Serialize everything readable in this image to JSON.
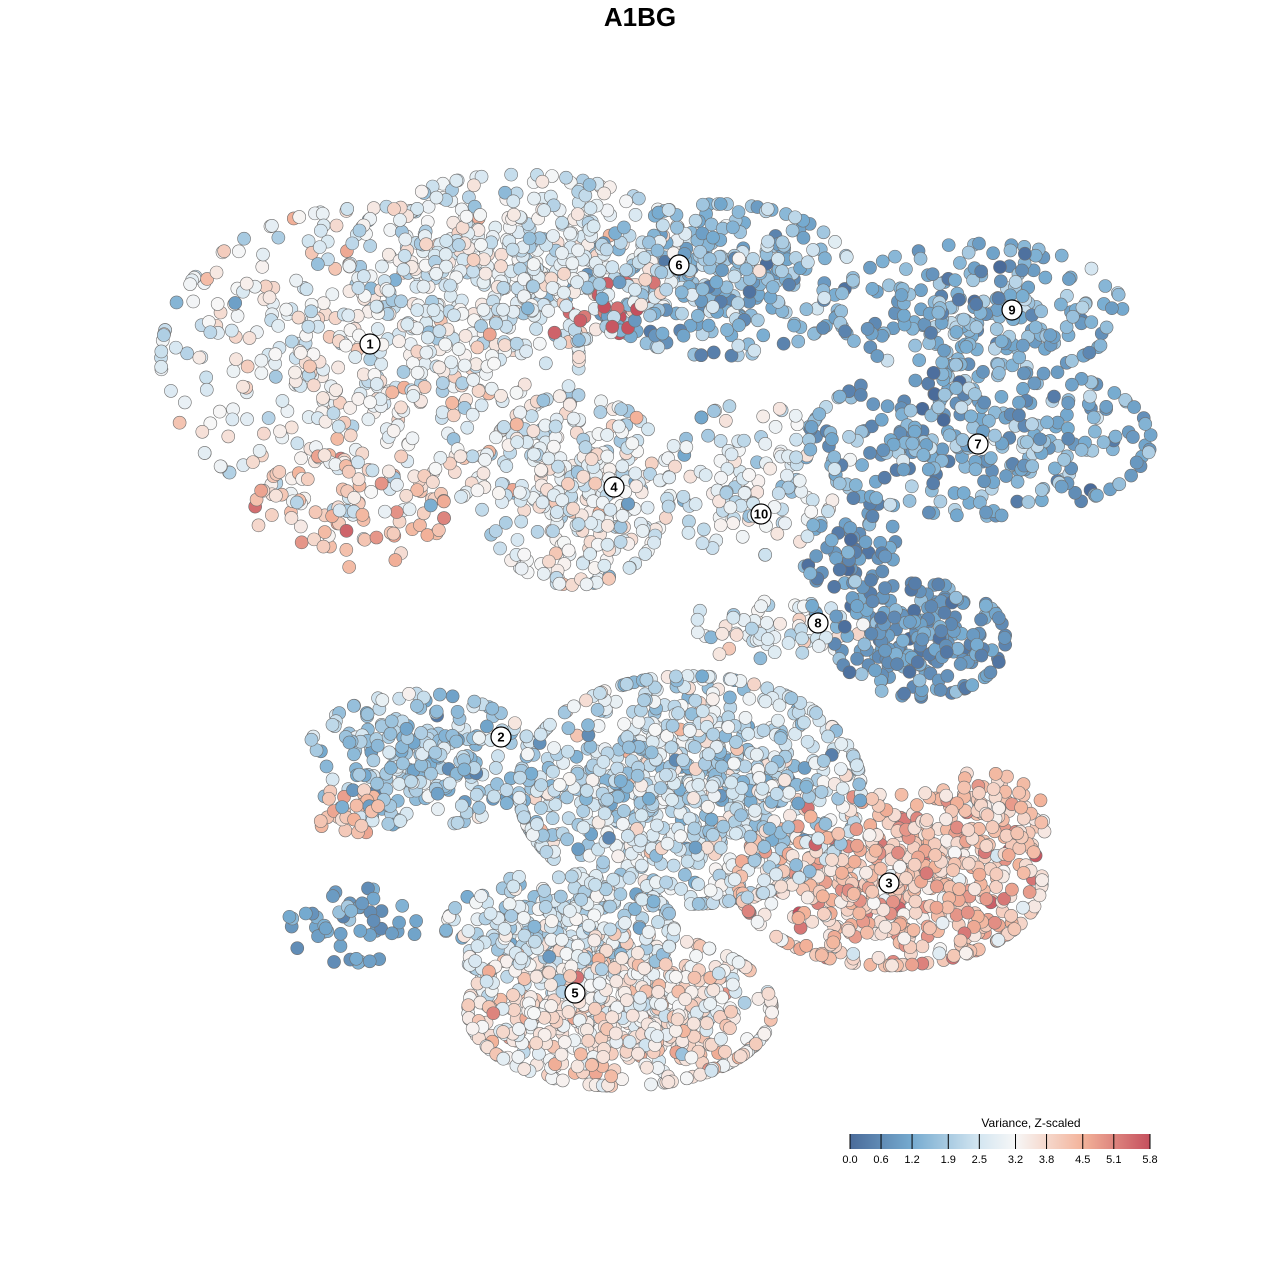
{
  "chart_data": {
    "type": "scatter",
    "title": "A1BG",
    "xlabel": "",
    "ylabel": "",
    "xlim": [
      -45,
      50
    ],
    "ylim": [
      -46,
      46
    ],
    "grid": false,
    "color_scale": {
      "title": "Variance, Z-scaled",
      "range": [
        0.0,
        5.8
      ],
      "ticks": [
        "0.0",
        "0.6",
        "1.2",
        "1.9",
        "2.5",
        "3.2",
        "3.8",
        "4.5",
        "5.1",
        "5.8"
      ],
      "stops": [
        {
          "value": 0.0,
          "color": "#4a6b9a"
        },
        {
          "value": 1.2,
          "color": "#76abd0"
        },
        {
          "value": 2.5,
          "color": "#d4e6f1"
        },
        {
          "value": 3.2,
          "color": "#f7f7f7"
        },
        {
          "value": 4.5,
          "color": "#f3b39a"
        },
        {
          "value": 5.8,
          "color": "#c5505e"
        }
      ],
      "placement": "bottom-right"
    },
    "cluster_labels": [
      {
        "label": "1",
        "x": -27,
        "y": 29.6
      },
      {
        "label": "2",
        "x": -13.9,
        "y": -9.7
      },
      {
        "label": "3",
        "x": 24.9,
        "y": -24.3
      },
      {
        "label": "4",
        "x": -2.6,
        "y": 15.3
      },
      {
        "label": "5",
        "x": -6.5,
        "y": -35.3
      },
      {
        "label": "6",
        "x": 3.9,
        "y": 37.5
      },
      {
        "label": "7",
        "x": 33.8,
        "y": 19.6
      },
      {
        "label": "8",
        "x": 17.8,
        "y": 1.7
      },
      {
        "label": "9",
        "x": 37.2,
        "y": 33
      },
      {
        "label": "10",
        "x": 12.1,
        "y": 12.6
      }
    ],
    "point_groups": [
      {
        "cx": -27,
        "cy": 28,
        "sx": 11,
        "sy": 8,
        "n": 500,
        "mean": 3.0,
        "sd": 0.6
      },
      {
        "cx": -12,
        "cy": 38,
        "sx": 9,
        "sy": 4.5,
        "n": 450,
        "mean": 2.7,
        "sd": 0.6
      },
      {
        "cx": -29,
        "cy": 13,
        "sx": 5,
        "sy": 3,
        "n": 80,
        "mean": 4.2,
        "sd": 0.5
      },
      {
        "cx": 8,
        "cy": 36,
        "sx": 7,
        "sy": 4,
        "n": 300,
        "mean": 1.5,
        "sd": 0.6
      },
      {
        "cx": -4,
        "cy": 33.5,
        "sx": 3.5,
        "sy": 2,
        "n": 20,
        "mean": 5.6,
        "sd": 0.2
      },
      {
        "cx": 34,
        "cy": 33,
        "sx": 7.5,
        "sy": 3.5,
        "n": 220,
        "mean": 1.3,
        "sd": 0.5
      },
      {
        "cx": 34,
        "cy": 20,
        "sx": 9,
        "sy": 4,
        "n": 300,
        "mean": 1.3,
        "sd": 0.6
      },
      {
        "cx": -6.5,
        "cy": 15,
        "sx": 5,
        "sy": 5,
        "n": 300,
        "mean": 2.9,
        "sd": 0.6
      },
      {
        "cx": 11,
        "cy": 16,
        "sx": 4.5,
        "sy": 4,
        "n": 120,
        "mean": 2.6,
        "sd": 0.6
      },
      {
        "cx": 28,
        "cy": 0,
        "sx": 4.5,
        "sy": 3,
        "n": 200,
        "mean": 0.8,
        "sd": 0.4
      },
      {
        "cx": 21,
        "cy": 8,
        "sx": 2.5,
        "sy": 4,
        "n": 80,
        "mean": 0.9,
        "sd": 0.4
      },
      {
        "cx": 13,
        "cy": 1,
        "sx": 5,
        "sy": 1.5,
        "n": 60,
        "mean": 2.8,
        "sd": 0.6
      },
      {
        "cx": -22,
        "cy": -12,
        "sx": 6,
        "sy": 3.5,
        "n": 250,
        "mean": 1.8,
        "sd": 0.6
      },
      {
        "cx": -29.5,
        "cy": -17,
        "sx": 1.8,
        "sy": 1.5,
        "n": 25,
        "mean": 4.2,
        "sd": 0.3
      },
      {
        "cx": 5,
        "cy": -15,
        "sx": 9,
        "sy": 6,
        "n": 900,
        "mean": 2.4,
        "sd": 0.7
      },
      {
        "cx": 25,
        "cy": -24,
        "sx": 8,
        "sy": 4.5,
        "n": 500,
        "mean": 4.1,
        "sd": 0.6
      },
      {
        "cx": 34,
        "cy": -18,
        "sx": 3.5,
        "sy": 2.5,
        "n": 100,
        "mean": 4.0,
        "sd": 0.4
      },
      {
        "cx": -2,
        "cy": -37,
        "sx": 8,
        "sy": 4,
        "n": 600,
        "mean": 3.4,
        "sd": 0.6
      },
      {
        "cx": -8,
        "cy": -29,
        "sx": 6,
        "sy": 3,
        "n": 250,
        "mean": 2.4,
        "sd": 0.6
      },
      {
        "cx": -29,
        "cy": -28.5,
        "sx": 3.5,
        "sy": 2,
        "n": 50,
        "mean": 1.2,
        "sd": 0.4
      }
    ]
  }
}
